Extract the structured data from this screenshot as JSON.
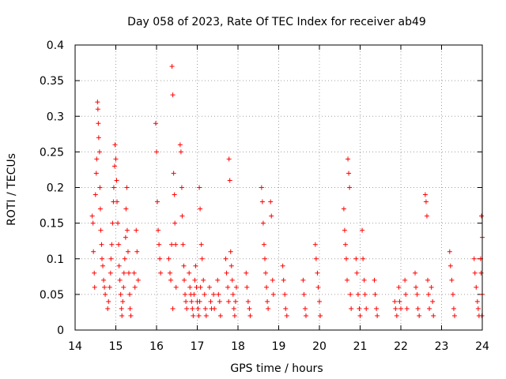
{
  "chart_data": {
    "type": "scatter",
    "title": "Day 058 of 2023, Rate Of TEC Index for receiver ab49",
    "xlabel": "GPS time / hours",
    "ylabel": "ROTI / TECUs",
    "xlim": [
      14,
      24
    ],
    "ylim": [
      0,
      0.4
    ],
    "xticks": [
      "14",
      "15",
      "16",
      "17",
      "18",
      "19",
      "20",
      "21",
      "22",
      "23",
      "24"
    ],
    "yticks": [
      "0",
      "0.05",
      "0.1",
      "0.15",
      "0.2",
      "0.25",
      "0.3",
      "0.35",
      "0.4"
    ],
    "grid": true,
    "marker": "plus",
    "color": "#ff0000",
    "series": [
      {
        "points": [
          [
            14.42,
            0.16
          ],
          [
            14.44,
            0.15
          ],
          [
            14.45,
            0.11
          ],
          [
            14.47,
            0.08
          ],
          [
            14.48,
            0.06
          ],
          [
            14.5,
            0.19
          ],
          [
            14.52,
            0.22
          ],
          [
            14.53,
            0.24
          ],
          [
            14.55,
            0.32
          ],
          [
            14.56,
            0.31
          ],
          [
            14.57,
            0.29
          ],
          [
            14.58,
            0.27
          ],
          [
            14.6,
            0.25
          ],
          [
            14.61,
            0.2
          ],
          [
            14.62,
            0.17
          ],
          [
            14.63,
            0.14
          ],
          [
            14.65,
            0.12
          ],
          [
            14.66,
            0.1
          ],
          [
            14.68,
            0.09
          ],
          [
            14.7,
            0.07
          ],
          [
            14.72,
            0.06
          ],
          [
            14.74,
            0.05
          ],
          [
            14.8,
            0.03
          ],
          [
            14.82,
            0.04
          ],
          [
            14.85,
            0.06
          ],
          [
            14.87,
            0.08
          ],
          [
            14.88,
            0.1
          ],
          [
            14.9,
            0.12
          ],
          [
            14.92,
            0.15
          ],
          [
            14.94,
            0.18
          ],
          [
            14.95,
            0.2
          ],
          [
            14.97,
            0.23
          ],
          [
            14.98,
            0.26
          ],
          [
            15.0,
            0.24
          ],
          [
            15.02,
            0.21
          ],
          [
            15.03,
            0.18
          ],
          [
            15.05,
            0.15
          ],
          [
            15.07,
            0.12
          ],
          [
            15.08,
            0.09
          ],
          [
            15.1,
            0.07
          ],
          [
            15.12,
            0.05
          ],
          [
            15.14,
            0.03
          ],
          [
            15.15,
            0.02
          ],
          [
            15.17,
            0.04
          ],
          [
            15.19,
            0.06
          ],
          [
            15.2,
            0.08
          ],
          [
            15.22,
            0.1
          ],
          [
            15.24,
            0.13
          ],
          [
            15.25,
            0.17
          ],
          [
            15.27,
            0.2
          ],
          [
            15.28,
            0.14
          ],
          [
            15.3,
            0.11
          ],
          [
            15.32,
            0.08
          ],
          [
            15.34,
            0.05
          ],
          [
            15.35,
            0.03
          ],
          [
            15.37,
            0.02
          ],
          [
            15.45,
            0.08
          ],
          [
            15.47,
            0.06
          ],
          [
            15.5,
            0.14
          ],
          [
            15.52,
            0.11
          ],
          [
            15.55,
            0.07
          ],
          [
            15.98,
            0.29
          ],
          [
            16.0,
            0.25
          ],
          [
            16.02,
            0.18
          ],
          [
            16.04,
            0.14
          ],
          [
            16.06,
            0.12
          ],
          [
            16.08,
            0.1
          ],
          [
            16.1,
            0.08
          ],
          [
            16.3,
            0.1
          ],
          [
            16.33,
            0.08
          ],
          [
            16.35,
            0.07
          ],
          [
            16.37,
            0.12
          ],
          [
            16.38,
            0.37
          ],
          [
            16.4,
            0.33
          ],
          [
            16.42,
            0.22
          ],
          [
            16.44,
            0.19
          ],
          [
            16.45,
            0.15
          ],
          [
            16.47,
            0.12
          ],
          [
            16.48,
            0.06
          ],
          [
            16.4,
            0.03
          ],
          [
            16.58,
            0.26
          ],
          [
            16.6,
            0.25
          ],
          [
            16.62,
            0.2
          ],
          [
            16.63,
            0.16
          ],
          [
            16.65,
            0.12
          ],
          [
            16.67,
            0.09
          ],
          [
            16.68,
            0.07
          ],
          [
            16.7,
            0.05
          ],
          [
            16.72,
            0.04
          ],
          [
            16.74,
            0.03
          ],
          [
            16.8,
            0.08
          ],
          [
            16.82,
            0.06
          ],
          [
            16.84,
            0.05
          ],
          [
            16.86,
            0.04
          ],
          [
            16.88,
            0.03
          ],
          [
            16.9,
            0.02
          ],
          [
            16.92,
            0.05
          ],
          [
            16.94,
            0.07
          ],
          [
            16.96,
            0.09
          ],
          [
            16.98,
            0.06
          ],
          [
            17.0,
            0.04
          ],
          [
            17.02,
            0.03
          ],
          [
            17.04,
            0.02
          ],
          [
            17.06,
            0.04
          ],
          [
            17.08,
            0.06
          ],
          [
            17.05,
            0.2
          ],
          [
            17.07,
            0.17
          ],
          [
            17.1,
            0.12
          ],
          [
            17.12,
            0.1
          ],
          [
            17.15,
            0.07
          ],
          [
            17.18,
            0.05
          ],
          [
            17.2,
            0.03
          ],
          [
            17.22,
            0.02
          ],
          [
            17.3,
            0.06
          ],
          [
            17.33,
            0.04
          ],
          [
            17.35,
            0.03
          ],
          [
            17.4,
            0.05
          ],
          [
            17.42,
            0.03
          ],
          [
            17.5,
            0.07
          ],
          [
            17.52,
            0.05
          ],
          [
            17.55,
            0.04
          ],
          [
            17.57,
            0.02
          ],
          [
            17.7,
            0.1
          ],
          [
            17.72,
            0.08
          ],
          [
            17.75,
            0.06
          ],
          [
            17.77,
            0.04
          ],
          [
            17.78,
            0.24
          ],
          [
            17.8,
            0.21
          ],
          [
            17.82,
            0.11
          ],
          [
            17.84,
            0.09
          ],
          [
            17.86,
            0.07
          ],
          [
            17.88,
            0.05
          ],
          [
            17.9,
            0.03
          ],
          [
            17.92,
            0.02
          ],
          [
            17.94,
            0.04
          ],
          [
            17.96,
            0.06
          ],
          [
            18.2,
            0.08
          ],
          [
            18.22,
            0.06
          ],
          [
            18.25,
            0.04
          ],
          [
            18.28,
            0.03
          ],
          [
            18.3,
            0.02
          ],
          [
            18.58,
            0.2
          ],
          [
            18.6,
            0.18
          ],
          [
            18.62,
            0.15
          ],
          [
            18.64,
            0.12
          ],
          [
            18.66,
            0.1
          ],
          [
            18.68,
            0.08
          ],
          [
            18.7,
            0.06
          ],
          [
            18.72,
            0.04
          ],
          [
            18.74,
            0.03
          ],
          [
            18.8,
            0.18
          ],
          [
            18.82,
            0.16
          ],
          [
            18.85,
            0.07
          ],
          [
            18.87,
            0.05
          ],
          [
            19.1,
            0.09
          ],
          [
            19.12,
            0.07
          ],
          [
            19.15,
            0.05
          ],
          [
            19.17,
            0.03
          ],
          [
            19.2,
            0.02
          ],
          [
            19.6,
            0.07
          ],
          [
            19.62,
            0.05
          ],
          [
            19.65,
            0.03
          ],
          [
            19.67,
            0.02
          ],
          [
            19.9,
            0.12
          ],
          [
            19.92,
            0.1
          ],
          [
            19.95,
            0.08
          ],
          [
            19.97,
            0.06
          ],
          [
            20.0,
            0.04
          ],
          [
            20.02,
            0.02
          ],
          [
            20.6,
            0.17
          ],
          [
            20.62,
            0.14
          ],
          [
            20.64,
            0.12
          ],
          [
            20.66,
            0.1
          ],
          [
            20.68,
            0.07
          ],
          [
            20.7,
            0.24
          ],
          [
            20.72,
            0.22
          ],
          [
            20.74,
            0.2
          ],
          [
            20.76,
            0.05
          ],
          [
            20.78,
            0.03
          ],
          [
            20.9,
            0.1
          ],
          [
            20.92,
            0.08
          ],
          [
            20.95,
            0.05
          ],
          [
            20.98,
            0.03
          ],
          [
            21.0,
            0.02
          ],
          [
            21.05,
            0.14
          ],
          [
            21.07,
            0.1
          ],
          [
            21.1,
            0.07
          ],
          [
            21.12,
            0.05
          ],
          [
            21.15,
            0.03
          ],
          [
            21.35,
            0.07
          ],
          [
            21.37,
            0.05
          ],
          [
            21.4,
            0.03
          ],
          [
            21.42,
            0.02
          ],
          [
            21.85,
            0.04
          ],
          [
            21.87,
            0.03
          ],
          [
            21.9,
            0.02
          ],
          [
            21.95,
            0.06
          ],
          [
            21.97,
            0.04
          ],
          [
            22.0,
            0.03
          ],
          [
            22.1,
            0.07
          ],
          [
            22.12,
            0.05
          ],
          [
            22.15,
            0.03
          ],
          [
            22.35,
            0.08
          ],
          [
            22.37,
            0.06
          ],
          [
            22.4,
            0.05
          ],
          [
            22.42,
            0.03
          ],
          [
            22.45,
            0.02
          ],
          [
            22.6,
            0.19
          ],
          [
            22.62,
            0.18
          ],
          [
            22.64,
            0.16
          ],
          [
            22.66,
            0.07
          ],
          [
            22.68,
            0.05
          ],
          [
            22.7,
            0.03
          ],
          [
            22.75,
            0.06
          ],
          [
            22.78,
            0.04
          ],
          [
            22.8,
            0.02
          ],
          [
            23.2,
            0.11
          ],
          [
            23.22,
            0.09
          ],
          [
            23.25,
            0.07
          ],
          [
            23.28,
            0.05
          ],
          [
            23.3,
            0.03
          ],
          [
            23.32,
            0.02
          ],
          [
            23.8,
            0.1
          ],
          [
            23.82,
            0.08
          ],
          [
            23.85,
            0.06
          ],
          [
            23.88,
            0.04
          ],
          [
            23.9,
            0.03
          ],
          [
            23.92,
            0.02
          ],
          [
            23.98,
            0.16
          ],
          [
            24.0,
            0.13
          ],
          [
            23.96,
            0.1
          ],
          [
            23.97,
            0.08
          ],
          [
            24.0,
            0.05
          ],
          [
            23.99,
            0.02
          ]
        ]
      }
    ]
  }
}
